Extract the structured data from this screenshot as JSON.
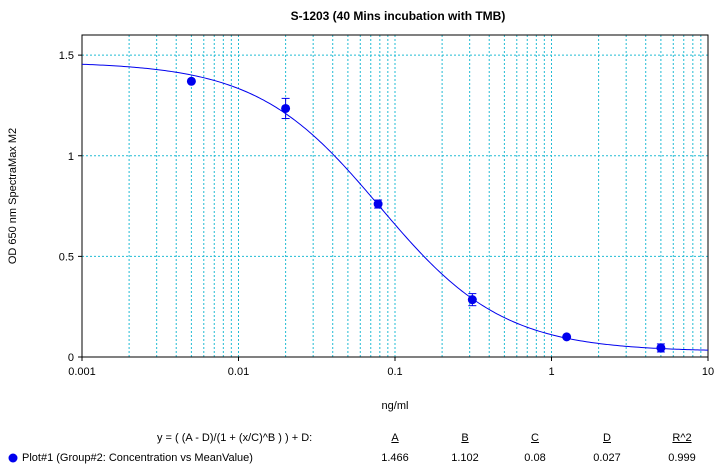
{
  "chart_data": {
    "type": "scatter",
    "title": "S-1203 (40 Mins incubation with TMB)",
    "xlabel": "ng/ml",
    "ylabel": "OD 650 nm SpectraMax M2",
    "x_scale": "log",
    "xlim": [
      0.001,
      10
    ],
    "ylim": [
      0,
      1.6
    ],
    "x_ticks": [
      0.001,
      0.01,
      0.1,
      1,
      10
    ],
    "x_tick_labels": [
      "0.001",
      "0.01",
      "0.1",
      "1",
      "10"
    ],
    "y_ticks": [
      0,
      0.5,
      1,
      1.5
    ],
    "y_tick_labels": [
      "0",
      "0.5",
      "1",
      "1.5"
    ],
    "grid": true,
    "series": [
      {
        "name": "Plot#1 (Group#2: Concentration vs MeanValue)",
        "color": "#0000ee",
        "points": [
          {
            "x": 0.005,
            "y": 1.37,
            "err": 0.0
          },
          {
            "x": 0.02,
            "y": 1.235,
            "err": 0.05
          },
          {
            "x": 0.078,
            "y": 0.76,
            "err": 0.02
          },
          {
            "x": 0.312,
            "y": 0.285,
            "err": 0.03
          },
          {
            "x": 1.25,
            "y": 0.1,
            "err": 0.0
          },
          {
            "x": 5,
            "y": 0.045,
            "err": 0.02
          }
        ]
      }
    ],
    "fit": {
      "equation": "y = ( (A - D)/(1 + (x/C)^B ) ) + D:",
      "headers": [
        "A",
        "B",
        "C",
        "D",
        "R^2"
      ],
      "values": [
        "1.466",
        "1.102",
        "0.08",
        "0.027",
        "0.999"
      ],
      "A": 1.466,
      "B": 1.102,
      "C": 0.08,
      "D": 0.027
    }
  }
}
